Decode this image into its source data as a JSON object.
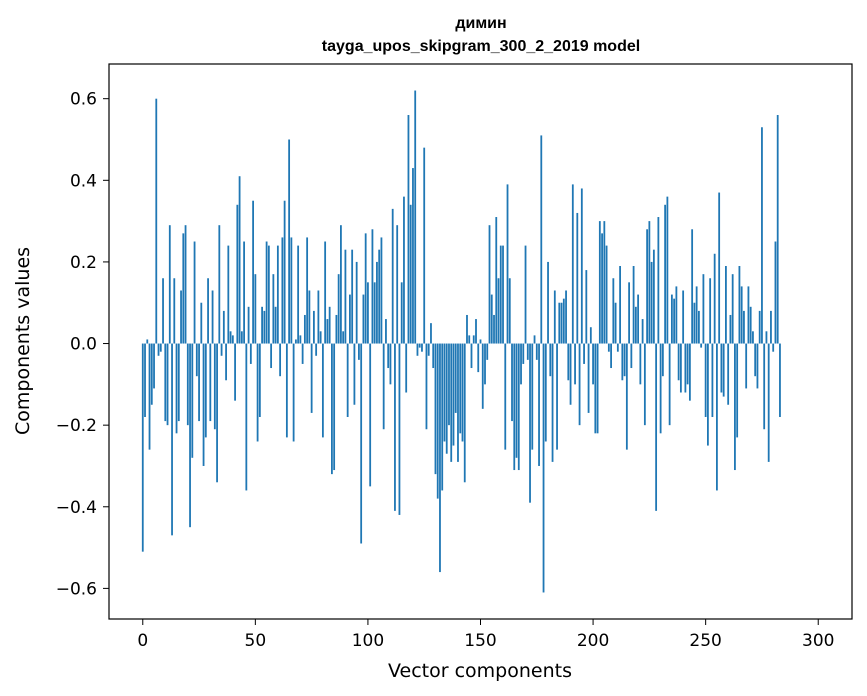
{
  "chart_data": {
    "type": "bar",
    "title": "димин",
    "subtitle": "tayga_upos_skipgram_300_2_2019 model",
    "xlabel": "Vector components",
    "ylabel": "Components values",
    "xlim": [
      -15,
      315
    ],
    "ylim": [
      -0.675,
      0.685
    ],
    "x_ticks": [
      0,
      50,
      100,
      150,
      200,
      250,
      300
    ],
    "y_ticks": [
      -0.6,
      -0.4,
      -0.2,
      0.0,
      0.2,
      0.4,
      0.6
    ],
    "x_tick_labels": [
      "0",
      "50",
      "100",
      "150",
      "200",
      "250",
      "300"
    ],
    "y_tick_labels": [
      "−0.6",
      "−0.4",
      "−0.2",
      "0.0",
      "0.2",
      "0.4",
      "0.6"
    ],
    "bar_color": "#1f77b4",
    "grid": false,
    "values": [
      -0.51,
      -0.18,
      0.01,
      -0.26,
      -0.15,
      -0.11,
      0.6,
      -0.03,
      -0.02,
      0.16,
      -0.19,
      -0.2,
      0.29,
      -0.47,
      0.16,
      -0.22,
      -0.19,
      0.13,
      0.27,
      0.29,
      -0.2,
      -0.45,
      -0.28,
      0.25,
      -0.08,
      -0.19,
      0.1,
      -0.3,
      -0.23,
      0.16,
      -0.19,
      0.13,
      -0.21,
      -0.34,
      0.29,
      -0.03,
      0.08,
      -0.09,
      0.24,
      0.03,
      0.02,
      -0.14,
      0.34,
      0.41,
      0.03,
      0.25,
      -0.36,
      0.09,
      -0.05,
      0.35,
      0.17,
      -0.24,
      -0.18,
      0.09,
      0.08,
      0.25,
      0.24,
      -0.06,
      0.17,
      0.09,
      0.24,
      -0.08,
      0.26,
      0.35,
      -0.23,
      0.5,
      0.26,
      -0.24,
      0.01,
      0.24,
      0.02,
      -0.05,
      0.07,
      0.26,
      0.13,
      -0.17,
      0.08,
      -0.03,
      0.13,
      0.03,
      -0.23,
      0.25,
      0.06,
      0.09,
      -0.32,
      -0.31,
      0.07,
      0.17,
      0.29,
      0.03,
      0.23,
      -0.18,
      0.12,
      0.23,
      -0.15,
      0.2,
      -0.04,
      -0.49,
      0.12,
      0.27,
      0.15,
      -0.35,
      0.28,
      0.15,
      0.2,
      0.23,
      0.26,
      -0.21,
      0.06,
      -0.06,
      -0.1,
      0.33,
      -0.41,
      0.29,
      -0.42,
      0.15,
      0.36,
      -0.12,
      0.56,
      0.34,
      0.43,
      0.62,
      -0.03,
      -0.01,
      -0.02,
      0.48,
      -0.21,
      -0.03,
      0.05,
      -0.06,
      -0.32,
      -0.38,
      -0.56,
      -0.36,
      -0.24,
      -0.27,
      -0.2,
      -0.29,
      -0.25,
      -0.17,
      -0.29,
      -0.22,
      -0.24,
      -0.34,
      0.07,
      0.02,
      -0.06,
      0.02,
      0.06,
      -0.07,
      0.01,
      -0.16,
      -0.1,
      -0.04,
      0.29,
      0.12,
      0.07,
      0.31,
      0.16,
      0.24,
      0.24,
      -0.26,
      0.39,
      0.16,
      -0.19,
      -0.31,
      -0.28,
      -0.31,
      -0.1,
      -0.05,
      0.24,
      -0.04,
      -0.39,
      -0.26,
      0.02,
      -0.04,
      -0.3,
      0.51,
      -0.61,
      -0.24,
      0.2,
      -0.08,
      -0.29,
      0.13,
      -0.26,
      0.1,
      0.1,
      0.11,
      0.13,
      -0.09,
      -0.15,
      0.39,
      -0.1,
      0.32,
      -0.2,
      0.38,
      -0.05,
      0.18,
      -0.17,
      0.04,
      -0.1,
      -0.22,
      -0.22,
      0.3,
      0.27,
      0.3,
      0.24,
      -0.02,
      -0.06,
      0.16,
      0.1,
      -0.02,
      0.19,
      -0.09,
      -0.08,
      -0.26,
      0.15,
      -0.06,
      0.19,
      0.09,
      0.12,
      -0.1,
      0.06,
      -0.2,
      0.28,
      0.3,
      0.2,
      0.23,
      -0.41,
      0.31,
      -0.22,
      -0.08,
      0.34,
      0.36,
      -0.2,
      0.12,
      0.11,
      0.14,
      -0.09,
      -0.12,
      0.13,
      -0.12,
      -0.1,
      -0.14,
      0.28,
      0.1,
      0.14,
      0.08,
      -0.01,
      0.17,
      -0.18,
      -0.25,
      0.16,
      -0.18,
      0.22,
      -0.36,
      0.37,
      -0.12,
      -0.13,
      0.19,
      -0.15,
      0.07,
      0.17,
      -0.31,
      -0.23,
      0.19,
      0.14,
      0.08,
      -0.11,
      0.14,
      0.09,
      0.03,
      -0.08,
      -0.11,
      0.08,
      0.53,
      -0.21,
      0.03,
      -0.29,
      0.08,
      -0.02,
      0.25,
      0.56,
      -0.18
    ]
  }
}
